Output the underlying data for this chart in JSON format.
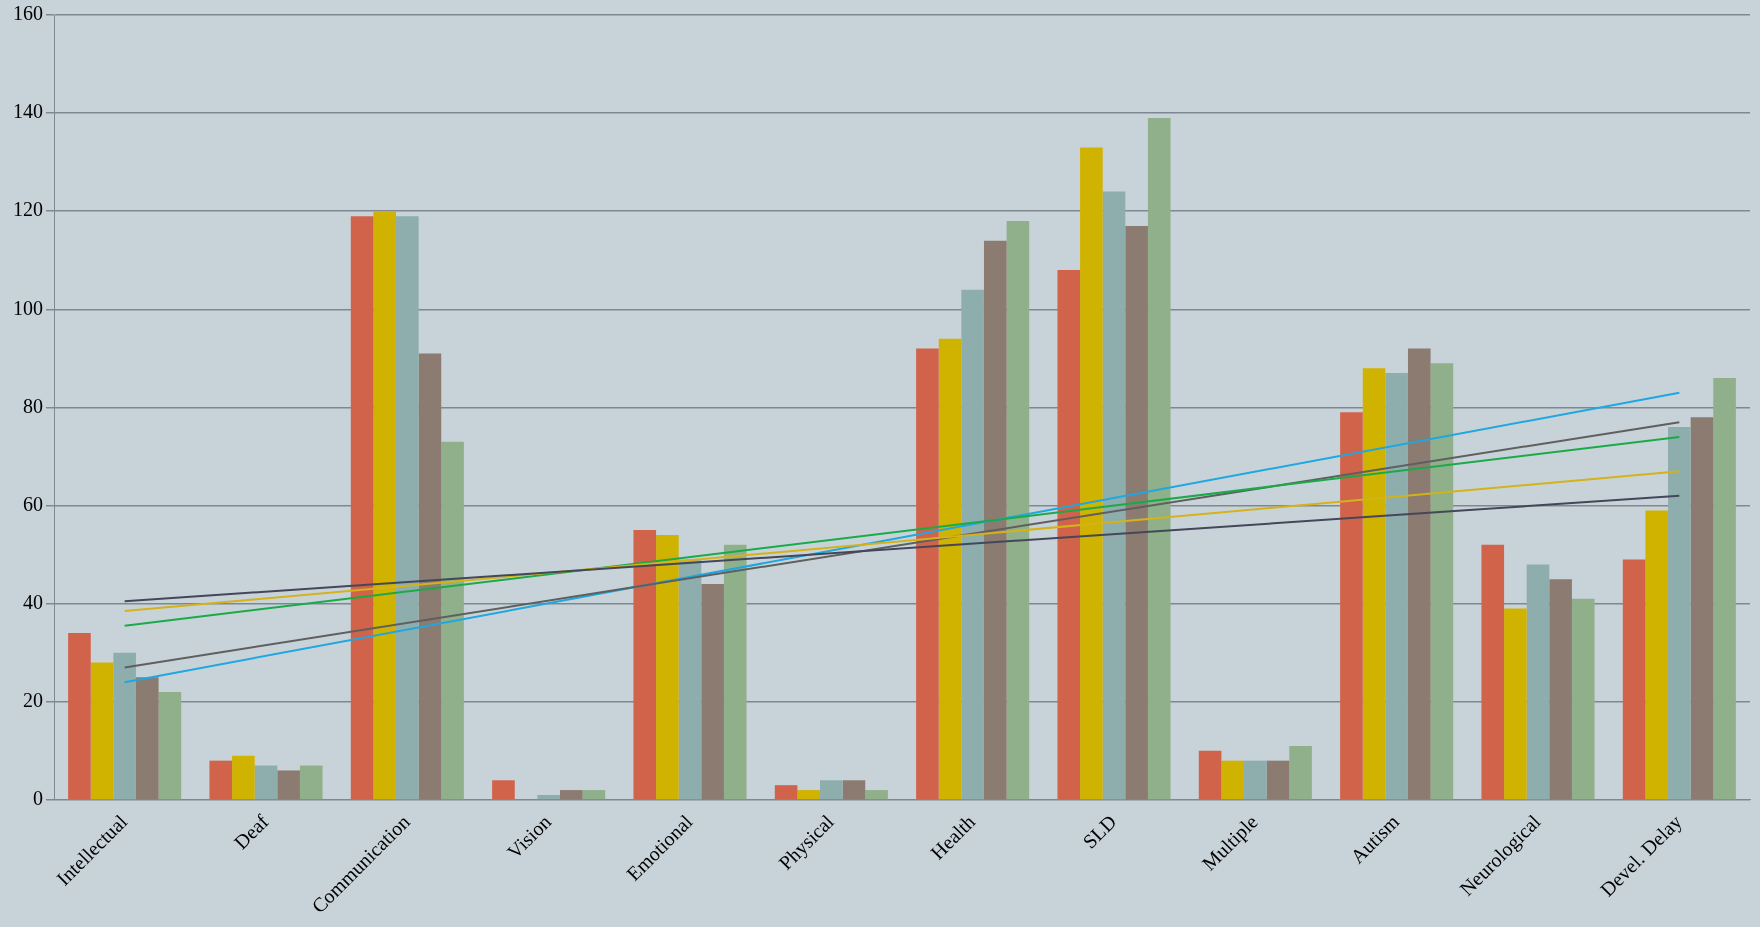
{
  "chart_data": {
    "type": "bar",
    "categories": [
      "Intellectual",
      "Deaf",
      "Communication",
      "Vision",
      "Emotional",
      "Physical",
      "Health",
      "SLD",
      "Multiple",
      "Autism",
      "Neurological",
      "Devel. Delay"
    ],
    "series": [
      {
        "color": "#d0634a",
        "values": [
          34,
          8,
          119,
          4,
          55,
          3,
          92,
          108,
          10,
          79,
          52,
          49
        ]
      },
      {
        "color": "#cfb300",
        "values": [
          28,
          9,
          120,
          0,
          54,
          2,
          94,
          133,
          8,
          88,
          39,
          59
        ]
      },
      {
        "color": "#8eaeae",
        "values": [
          30,
          7,
          119,
          1,
          49,
          4,
          104,
          124,
          8,
          87,
          48,
          76
        ]
      },
      {
        "color": "#8b7b70",
        "values": [
          25,
          6,
          91,
          2,
          44,
          4,
          114,
          117,
          8,
          92,
          45,
          78
        ]
      },
      {
        "color": "#8fb08a",
        "values": [
          22,
          7,
          73,
          2,
          52,
          2,
          118,
          139,
          11,
          89,
          41,
          86
        ]
      },
      {
        "type": "line",
        "color": "#44475a",
        "x": [
          "Intellectual",
          "Devel. Delay"
        ],
        "values": [
          40.5,
          62
        ]
      },
      {
        "type": "line",
        "color": "#d4b21a",
        "x": [
          "Intellectual",
          "Devel. Delay"
        ],
        "values": [
          38.5,
          67
        ]
      },
      {
        "type": "line",
        "color": "#1aaa48",
        "x": [
          "Intellectual",
          "Devel. Delay"
        ],
        "values": [
          35.5,
          74
        ]
      },
      {
        "type": "line",
        "color": "#5f5f5f",
        "x": [
          "Intellectual",
          "Devel. Delay"
        ],
        "values": [
          27,
          77
        ]
      },
      {
        "type": "line",
        "color": "#1ea7e0",
        "x": [
          "Intellectual",
          "Devel. Delay"
        ],
        "values": [
          24,
          83
        ]
      }
    ],
    "ylim": [
      0,
      160
    ],
    "yticks": [
      0,
      20,
      40,
      60,
      80,
      100,
      120,
      140,
      160
    ],
    "grid": "y",
    "marker": "none"
  }
}
